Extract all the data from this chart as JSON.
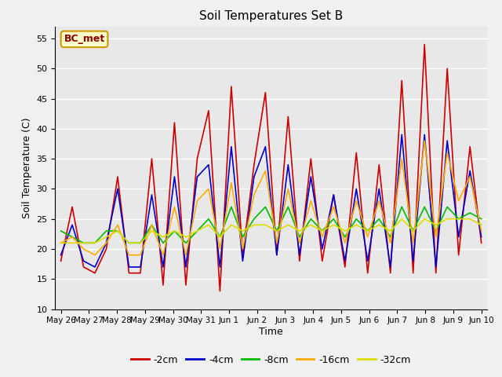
{
  "title": "Soil Temperatures Set B",
  "xlabel": "Time",
  "ylabel": "Soil Temperature (C)",
  "ylim": [
    10,
    57
  ],
  "yticks": [
    10,
    15,
    20,
    25,
    30,
    35,
    40,
    45,
    50,
    55
  ],
  "annotation": "BC_met",
  "colors": {
    "-2cm": "#cc0000",
    "-4cm": "#0000cc",
    "-8cm": "#00bb00",
    "-16cm": "#ffaa00",
    "-32cm": "#dddd00"
  },
  "legend_labels": [
    "-2cm",
    "-4cm",
    "-8cm",
    "-16cm",
    "-32cm"
  ],
  "x_labels": [
    "May 26",
    "May 27",
    "May 28",
    "May 29",
    "May 30",
    "May 31",
    "Jun 1",
    "Jun 2",
    "Jun 3",
    "Jun 4",
    "Jun 5",
    "Jun 6",
    "Jun 7",
    "Jun 8",
    "Jun 9",
    "Jun 10"
  ],
  "series": {
    "-2cm": [
      18,
      27,
      17,
      16,
      20,
      32,
      16,
      16,
      35,
      14,
      41,
      14,
      35,
      43,
      13,
      47,
      19,
      34,
      46,
      19,
      42,
      18,
      35,
      18,
      29,
      17,
      36,
      16,
      34,
      16,
      48,
      16,
      54,
      16,
      50,
      19,
      37,
      21
    ],
    "-4cm": [
      19,
      24,
      18,
      17,
      21,
      30,
      17,
      17,
      29,
      17,
      32,
      17,
      32,
      34,
      17,
      37,
      18,
      32,
      37,
      19,
      34,
      19,
      32,
      20,
      29,
      18,
      30,
      18,
      30,
      17,
      39,
      18,
      39,
      17,
      38,
      22,
      33,
      22
    ],
    "-8cm": [
      23,
      22,
      21,
      21,
      23,
      23,
      21,
      21,
      24,
      21,
      23,
      21,
      23,
      25,
      22,
      27,
      22,
      25,
      27,
      23,
      27,
      22,
      25,
      23,
      25,
      22,
      25,
      23,
      25,
      22,
      27,
      23,
      27,
      23,
      27,
      25,
      26,
      25
    ],
    "-16cm": [
      21,
      22,
      20,
      19,
      21,
      24,
      19,
      19,
      24,
      19,
      27,
      19,
      28,
      30,
      20,
      31,
      20,
      29,
      33,
      21,
      30,
      21,
      28,
      22,
      27,
      21,
      28,
      22,
      28,
      21,
      35,
      21,
      38,
      22,
      36,
      28,
      32,
      23
    ],
    "-32cm": [
      21,
      21,
      21,
      21,
      22,
      23,
      21,
      21,
      23,
      22,
      23,
      22,
      23,
      24,
      22,
      24,
      23,
      24,
      24,
      23,
      24,
      23,
      24,
      23,
      24,
      23,
      24,
      23,
      24,
      23,
      25,
      23,
      25,
      24,
      25,
      25,
      25,
      24
    ]
  },
  "background_color": "#f0f0f0",
  "plot_bg": "#e8e8e8",
  "grid_color": "#ffffff",
  "n_points": 38
}
